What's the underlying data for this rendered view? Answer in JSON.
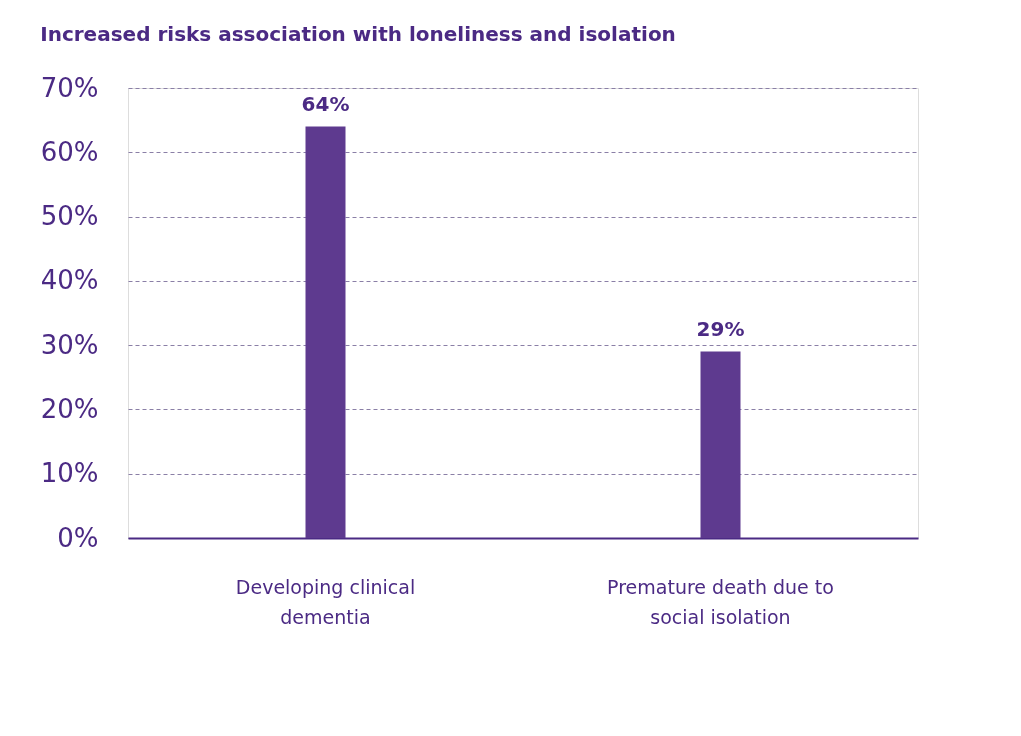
{
  "chart_data": {
    "type": "bar",
    "title": "Increased risks association with loneliness and isolation",
    "categories": [
      "Developing clinical\ndementia",
      "Premature death due to\nsocial isolation"
    ],
    "values": [
      64,
      29
    ],
    "value_labels": [
      "64%",
      "29%"
    ],
    "color": "#5e3a8f",
    "ylim": [
      0,
      70
    ],
    "yticks": [
      {
        "value": 0,
        "label": "0%"
      },
      {
        "value": 10,
        "label": "10%"
      },
      {
        "value": 20,
        "label": "20%"
      },
      {
        "value": 30,
        "label": "30%"
      },
      {
        "value": 40,
        "label": "40%"
      },
      {
        "value": 50,
        "label": "50%"
      },
      {
        "value": 60,
        "label": "60%"
      },
      {
        "value": 70,
        "label": "70%"
      }
    ],
    "grid": "y",
    "line_style": "dashed"
  }
}
